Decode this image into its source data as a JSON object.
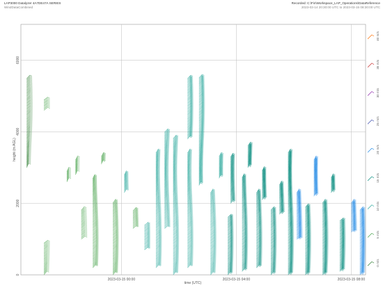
{
  "header": {
    "left_title": "LAP3000 Datalyzer 4A7DE47A SERIES",
    "left_subtitle": "WindDataCombined",
    "right_title": "Recorded: C:\\Fin\\Workspace_LAP_Operations\\DataReference",
    "right_subtitle": "2023-03-14 20:30:00 UTC to 2023-03-15 08:30:00 UTC"
  },
  "chart_data": {
    "type": "wind_barb_time_height",
    "xlabel": "time (UTC)",
    "ylabel": "height (m AGL)",
    "x_range_hours": [
      0,
      12
    ],
    "x_ticks": [
      {
        "hour": 3.5,
        "label": "2023-03-15 00:00"
      },
      {
        "hour": 7.5,
        "label": "2023-03-15 04:00"
      },
      {
        "hour": 11.5,
        "label": "2023-03-15 08:00"
      }
    ],
    "ylim": [
      0,
      7000
    ],
    "y_ticks": [
      {
        "value": 0,
        "label": "0"
      },
      {
        "value": 2000,
        "label": "2000"
      },
      {
        "value": 4000,
        "label": "4000"
      },
      {
        "value": 6000,
        "label": "6000"
      }
    ],
    "grid": true,
    "colorbar": {
      "title": "",
      "labels": [
        "0 m/s",
        "5 m/s",
        "10 m/s",
        "15 m/s",
        "20 m/s",
        "25 m/s",
        "30 m/s",
        "35 m/s",
        "40 m/s"
      ],
      "colors": [
        "#2e7d32",
        "#43a047",
        "#26a69a",
        "#00897b",
        "#1e88e5",
        "#3949ab",
        "#8e24aa",
        "#c62828",
        "#ff6f00"
      ]
    },
    "profiles": [
      {
        "hour": 0.2,
        "ymin": 3000,
        "ymax": 5500,
        "speed": 4
      },
      {
        "hour": 0.8,
        "ymin": 0,
        "ymax": 900,
        "speed": 5
      },
      {
        "hour": 0.8,
        "ymin": 4600,
        "ymax": 4900,
        "speed": 6
      },
      {
        "hour": 1.6,
        "ymin": 2600,
        "ymax": 2900,
        "speed": 7
      },
      {
        "hour": 1.9,
        "ymin": 2800,
        "ymax": 3200,
        "speed": 7
      },
      {
        "hour": 2.1,
        "ymin": 1000,
        "ymax": 1800,
        "speed": 6
      },
      {
        "hour": 2.5,
        "ymin": 200,
        "ymax": 2700,
        "speed": 8
      },
      {
        "hour": 2.8,
        "ymin": 3100,
        "ymax": 3300,
        "speed": 9
      },
      {
        "hour": 3.2,
        "ymin": 0,
        "ymax": 2000,
        "speed": 9
      },
      {
        "hour": 3.6,
        "ymin": 2300,
        "ymax": 2800,
        "speed": 10
      },
      {
        "hour": 3.9,
        "ymin": 1300,
        "ymax": 1800,
        "speed": 9
      },
      {
        "hour": 4.3,
        "ymin": 700,
        "ymax": 1400,
        "speed": 10
      },
      {
        "hour": 4.7,
        "ymin": 200,
        "ymax": 3400,
        "speed": 10
      },
      {
        "hour": 5.0,
        "ymin": 1300,
        "ymax": 4000,
        "speed": 11
      },
      {
        "hour": 5.3,
        "ymin": 0,
        "ymax": 3800,
        "speed": 11
      },
      {
        "hour": 5.8,
        "ymin": 3800,
        "ymax": 5500,
        "speed": 13
      },
      {
        "hour": 5.8,
        "ymin": 200,
        "ymax": 3400,
        "speed": 12
      },
      {
        "hour": 6.2,
        "ymin": 2500,
        "ymax": 5500,
        "speed": 13
      },
      {
        "hour": 6.6,
        "ymin": 0,
        "ymax": 2300,
        "speed": 12
      },
      {
        "hour": 6.9,
        "ymin": 2700,
        "ymax": 3300,
        "speed": 14
      },
      {
        "hour": 7.2,
        "ymin": 0,
        "ymax": 1600,
        "speed": 15
      },
      {
        "hour": 7.3,
        "ymin": 2000,
        "ymax": 3300,
        "speed": 16
      },
      {
        "hour": 7.7,
        "ymin": 100,
        "ymax": 2700,
        "speed": 16
      },
      {
        "hour": 7.9,
        "ymin": 3000,
        "ymax": 3600,
        "speed": 18
      },
      {
        "hour": 8.2,
        "ymin": 200,
        "ymax": 2300,
        "speed": 16
      },
      {
        "hour": 8.4,
        "ymin": 2100,
        "ymax": 2900,
        "speed": 18
      },
      {
        "hour": 8.7,
        "ymin": 0,
        "ymax": 1800,
        "speed": 17
      },
      {
        "hour": 9.0,
        "ymin": 1700,
        "ymax": 2500,
        "speed": 19
      },
      {
        "hour": 9.3,
        "ymin": 0,
        "ymax": 3400,
        "speed": 18
      },
      {
        "hour": 9.6,
        "ymin": 1000,
        "ymax": 2300,
        "speed": 20
      },
      {
        "hour": 9.9,
        "ymin": 0,
        "ymax": 1900,
        "speed": 19
      },
      {
        "hour": 10.2,
        "ymin": 2200,
        "ymax": 3200,
        "speed": 21
      },
      {
        "hour": 10.5,
        "ymin": 0,
        "ymax": 2000,
        "speed": 19
      },
      {
        "hour": 10.8,
        "ymin": 2300,
        "ymax": 2700,
        "speed": 18
      },
      {
        "hour": 11.1,
        "ymin": 100,
        "ymax": 1500,
        "speed": 19
      },
      {
        "hour": 11.5,
        "ymin": 1200,
        "ymax": 2000,
        "speed": 21
      },
      {
        "hour": 11.8,
        "ymin": 0,
        "ymax": 1800,
        "speed": 20
      }
    ]
  }
}
